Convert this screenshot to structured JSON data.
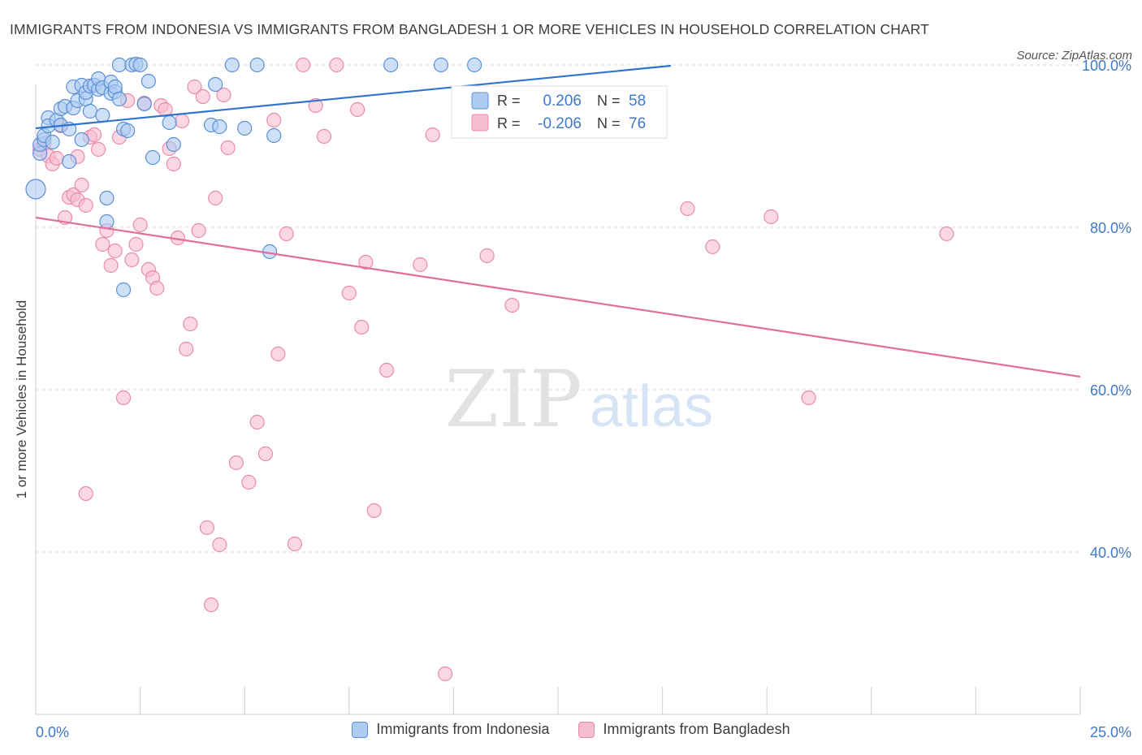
{
  "title": "IMMIGRANTS FROM INDONESIA VS IMMIGRANTS FROM BANGLADESH 1 OR MORE VEHICLES IN HOUSEHOLD CORRELATION CHART",
  "source": "Source: ZipAtlas.com",
  "watermark": {
    "zip": "ZIP",
    "atlas": "atlas"
  },
  "colors": {
    "indonesia_fill": "#aecbf2",
    "indonesia_stroke": "#5b8fd6",
    "indonesia_line": "#2f74cc",
    "bangladesh_fill": "#f6bdd0",
    "bangladesh_stroke": "#e98aac",
    "bangladesh_line": "#e0709a",
    "axis_label": "#3f78c8"
  },
  "legend_box": {
    "rows": [
      {
        "r_label": "R = ",
        "r_value": "0.206",
        "n_label": "N = ",
        "n_value": "58"
      },
      {
        "r_label": "R = ",
        "r_value": "-0.206",
        "n_label": "N = ",
        "n_value": "76"
      }
    ]
  },
  "legend": [
    "Immigrants from Indonesia",
    "Immigrants from Bangladesh"
  ],
  "chart_data": {
    "type": "scatter",
    "title": "IMMIGRANTS FROM INDONESIA VS IMMIGRANTS FROM BANGLADESH 1 OR MORE VEHICLES IN HOUSEHOLD CORRELATION CHART",
    "xlabel": "",
    "ylabel": "1 or more Vehicles in Household",
    "xlim": [
      0,
      25
    ],
    "ylim": [
      20,
      102
    ],
    "x_tick_labels": [
      {
        "value": 0,
        "label": "0.0%"
      },
      {
        "value": 25,
        "label": "25.0%"
      }
    ],
    "y_ticks": [
      {
        "value": 100,
        "label": "100.0%"
      },
      {
        "value": 80,
        "label": "80.0%"
      },
      {
        "value": 60,
        "label": "60.0%"
      },
      {
        "value": 40,
        "label": "40.0%"
      }
    ],
    "grid": true,
    "legend_position": "bottom",
    "series": [
      {
        "name": "Immigrants from Indonesia",
        "r": 0.206,
        "n": 58,
        "trend": {
          "x": [
            0,
            15.2
          ],
          "y": [
            92.2,
            99.9
          ]
        },
        "points": [
          [
            0.0,
            84.7
          ],
          [
            0.1,
            89.1
          ],
          [
            0.1,
            90.2
          ],
          [
            0.2,
            90.8
          ],
          [
            0.2,
            91.3
          ],
          [
            0.3,
            93.5
          ],
          [
            0.3,
            92.5
          ],
          [
            0.4,
            90.5
          ],
          [
            0.5,
            93.2
          ],
          [
            0.6,
            92.6
          ],
          [
            0.6,
            94.6
          ],
          [
            0.7,
            94.9
          ],
          [
            0.8,
            88.1
          ],
          [
            0.8,
            92.1
          ],
          [
            0.9,
            94.7
          ],
          [
            0.9,
            97.3
          ],
          [
            1.0,
            95.6
          ],
          [
            1.1,
            90.8
          ],
          [
            1.1,
            97.5
          ],
          [
            1.2,
            95.8
          ],
          [
            1.2,
            96.6
          ],
          [
            1.3,
            97.4
          ],
          [
            1.3,
            94.3
          ],
          [
            1.4,
            97.5
          ],
          [
            1.5,
            97.0
          ],
          [
            1.5,
            98.3
          ],
          [
            1.6,
            97.2
          ],
          [
            1.6,
            93.8
          ],
          [
            1.7,
            83.6
          ],
          [
            1.7,
            80.7
          ],
          [
            1.8,
            96.5
          ],
          [
            1.8,
            97.9
          ],
          [
            1.9,
            96.7
          ],
          [
            1.9,
            97.3
          ],
          [
            2.0,
            95.8
          ],
          [
            2.0,
            100.0
          ],
          [
            2.1,
            72.3
          ],
          [
            2.1,
            92.1
          ],
          [
            2.2,
            91.9
          ],
          [
            2.3,
            100.0
          ],
          [
            2.4,
            100.1
          ],
          [
            2.5,
            100.0
          ],
          [
            2.6,
            95.2
          ],
          [
            2.7,
            98.0
          ],
          [
            2.8,
            88.6
          ],
          [
            3.2,
            92.9
          ],
          [
            3.3,
            90.2
          ],
          [
            4.2,
            92.6
          ],
          [
            4.3,
            97.6
          ],
          [
            4.4,
            92.4
          ],
          [
            4.7,
            100.0
          ],
          [
            5.0,
            92.2
          ],
          [
            5.3,
            100.0
          ],
          [
            5.7,
            91.3
          ],
          [
            5.6,
            77.0
          ],
          [
            8.5,
            100.0
          ],
          [
            9.7,
            100.0
          ],
          [
            10.5,
            100.0
          ]
        ]
      },
      {
        "name": "Immigrants from Bangladesh",
        "r": -0.206,
        "n": 76,
        "trend": {
          "x": [
            0,
            25
          ],
          "y": [
            81.2,
            61.6
          ]
        },
        "points": [
          [
            0.1,
            89.6
          ],
          [
            0.2,
            90.3
          ],
          [
            0.3,
            88.8
          ],
          [
            0.4,
            87.8
          ],
          [
            0.5,
            88.5
          ],
          [
            0.6,
            92.5
          ],
          [
            0.7,
            81.2
          ],
          [
            0.8,
            83.7
          ],
          [
            0.9,
            84.0
          ],
          [
            1.0,
            88.7
          ],
          [
            1.0,
            83.4
          ],
          [
            1.1,
            85.2
          ],
          [
            1.2,
            82.7
          ],
          [
            1.2,
            47.2
          ],
          [
            1.3,
            91.1
          ],
          [
            1.4,
            91.4
          ],
          [
            1.5,
            89.6
          ],
          [
            1.6,
            77.9
          ],
          [
            1.7,
            79.6
          ],
          [
            1.8,
            75.3
          ],
          [
            1.9,
            77.1
          ],
          [
            2.0,
            91.1
          ],
          [
            2.1,
            59.0
          ],
          [
            2.2,
            95.6
          ],
          [
            2.3,
            76.0
          ],
          [
            2.4,
            77.9
          ],
          [
            2.5,
            80.3
          ],
          [
            2.6,
            95.3
          ],
          [
            2.7,
            74.8
          ],
          [
            2.8,
            73.8
          ],
          [
            2.9,
            72.5
          ],
          [
            3.0,
            95.0
          ],
          [
            3.1,
            94.5
          ],
          [
            3.2,
            89.7
          ],
          [
            3.3,
            87.8
          ],
          [
            3.4,
            78.7
          ],
          [
            3.5,
            93.1
          ],
          [
            3.6,
            65.0
          ],
          [
            3.7,
            68.1
          ],
          [
            3.8,
            97.3
          ],
          [
            3.9,
            79.6
          ],
          [
            4.0,
            96.1
          ],
          [
            4.1,
            43.0
          ],
          [
            4.2,
            33.5
          ],
          [
            4.3,
            83.6
          ],
          [
            4.4,
            40.9
          ],
          [
            4.5,
            96.3
          ],
          [
            4.6,
            89.8
          ],
          [
            4.8,
            51.0
          ],
          [
            5.1,
            48.6
          ],
          [
            5.3,
            56.0
          ],
          [
            5.5,
            52.1
          ],
          [
            5.7,
            93.2
          ],
          [
            5.8,
            64.4
          ],
          [
            6.0,
            79.2
          ],
          [
            6.2,
            41.0
          ],
          [
            6.4,
            100.0
          ],
          [
            6.7,
            95.0
          ],
          [
            6.9,
            91.2
          ],
          [
            7.2,
            100.0
          ],
          [
            7.5,
            71.9
          ],
          [
            7.7,
            94.5
          ],
          [
            7.8,
            67.7
          ],
          [
            7.9,
            75.7
          ],
          [
            8.1,
            45.1
          ],
          [
            8.4,
            62.4
          ],
          [
            9.2,
            75.4
          ],
          [
            9.5,
            91.4
          ],
          [
            9.8,
            25.0
          ],
          [
            10.8,
            76.5
          ],
          [
            11.4,
            70.4
          ],
          [
            15.6,
            82.3
          ],
          [
            16.2,
            77.6
          ],
          [
            17.6,
            81.3
          ],
          [
            18.5,
            59.0
          ],
          [
            21.8,
            79.2
          ]
        ]
      }
    ]
  }
}
